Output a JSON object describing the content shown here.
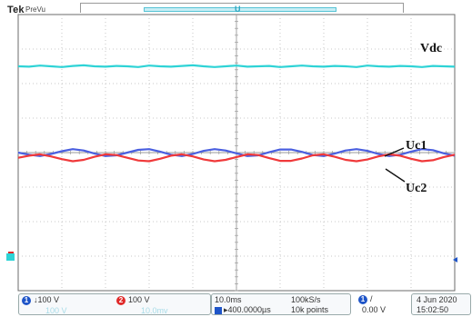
{
  "header": {
    "brand": "Tek",
    "mode": "PreVu",
    "trigger_marker": "U"
  },
  "status": {
    "ch1_label": "1",
    "ch1_scale": "↓100 V",
    "ch2_label": "2",
    "ch2_scale": "100 V",
    "timebase": "10.0ms",
    "trigger_delay": "▸400.0000µs",
    "sample_rate": "100kS/s",
    "record_length": "10k points",
    "trigger_channel": "1",
    "trigger_slope": "/",
    "trigger_level": "0.00 V",
    "date": "4 Jun  2020",
    "time": "15:02:50",
    "ghost_ch3": "100 V",
    "ghost_ch4": "10.0mv"
  },
  "colors": {
    "vdc": "#2ed3d6",
    "uc1": "#4a5fe0",
    "uc2": "#f0393a",
    "grid": "#b9b9b9",
    "ch1_chip": "#1f55c8",
    "ch2_chip": "#e02a2a"
  },
  "chart_data": {
    "type": "line",
    "x_unit": "div",
    "y_unit": "div",
    "xlim": [
      0,
      10
    ],
    "ylim": [
      -4,
      4
    ],
    "grid": true,
    "x": [
      0,
      0.25,
      0.5,
      0.75,
      1,
      1.25,
      1.5,
      1.75,
      2,
      2.25,
      2.5,
      2.75,
      3,
      3.25,
      3.5,
      3.75,
      4,
      4.25,
      4.5,
      4.75,
      5,
      5.25,
      5.5,
      5.75,
      6,
      6.25,
      6.5,
      6.75,
      7,
      7.25,
      7.5,
      7.75,
      8,
      8.25,
      8.5,
      8.75,
      9,
      9.25,
      9.5,
      9.75,
      10
    ],
    "series": [
      {
        "name": "Vdc",
        "values": [
          2.5,
          2.49,
          2.52,
          2.5,
          2.48,
          2.51,
          2.53,
          2.5,
          2.49,
          2.51,
          2.5,
          2.48,
          2.52,
          2.5,
          2.49,
          2.51,
          2.53,
          2.5,
          2.48,
          2.5,
          2.52,
          2.49,
          2.5,
          2.51,
          2.48,
          2.5,
          2.52,
          2.5,
          2.49,
          2.51,
          2.5,
          2.48,
          2.52,
          2.5,
          2.49,
          2.51,
          2.5,
          2.48,
          2.51,
          2.5,
          2.49
        ]
      },
      {
        "name": "Uc1",
        "values": [
          0,
          -0.06,
          -0.1,
          -0.04,
          0.04,
          0.1,
          0.06,
          -0.03,
          -0.1,
          -0.08,
          0,
          0.08,
          0.1,
          0.03,
          -0.06,
          -0.1,
          -0.04,
          0.05,
          0.1,
          0.06,
          -0.02,
          -0.1,
          -0.08,
          0.01,
          0.09,
          0.09,
          0.02,
          -0.07,
          -0.1,
          -0.03,
          0.06,
          0.1,
          0.05,
          -0.04,
          -0.1,
          -0.06,
          0.03,
          0.1,
          0.07,
          -0.02,
          -0.09
        ]
      },
      {
        "name": "Uc2",
        "values": [
          -0.15,
          -0.09,
          -0.05,
          -0.11,
          -0.19,
          -0.25,
          -0.21,
          -0.12,
          -0.05,
          -0.07,
          -0.15,
          -0.23,
          -0.25,
          -0.18,
          -0.09,
          -0.05,
          -0.11,
          -0.2,
          -0.25,
          -0.21,
          -0.13,
          -0.05,
          -0.07,
          -0.16,
          -0.24,
          -0.24,
          -0.17,
          -0.08,
          -0.05,
          -0.12,
          -0.21,
          -0.25,
          -0.2,
          -0.11,
          -0.05,
          -0.09,
          -0.18,
          -0.25,
          -0.22,
          -0.13,
          -0.06
        ]
      }
    ],
    "annotations": [
      {
        "text": "Vdc",
        "target": "Vdc"
      },
      {
        "text": "Uc1",
        "target": "Uc1"
      },
      {
        "text": "Uc2",
        "target": "Uc2"
      }
    ]
  }
}
